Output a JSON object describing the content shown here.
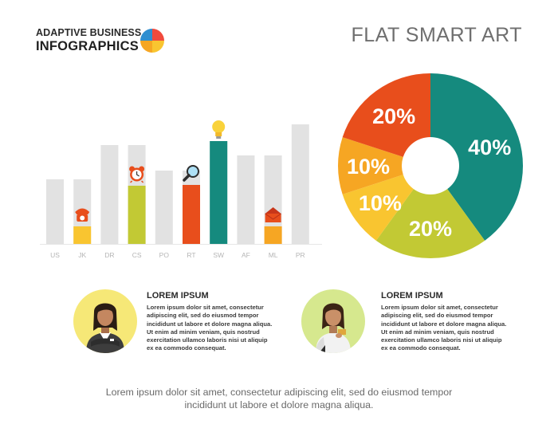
{
  "header": {
    "logo_line1": "ADAPTIVE BUSINESS",
    "logo_line2": "INFOGRAPHICS",
    "title": "FLAT SMART ART"
  },
  "colors": {
    "gray": "#e2e2e2",
    "yellow": "#f9c530",
    "orange": "#f6a623",
    "red_orange": "#e84e1c",
    "lime": "#c2c934",
    "teal": "#158a7e",
    "axis": "#e6e6e6",
    "tick_text": "#b5b5b5"
  },
  "chart_data": [
    {
      "type": "bar",
      "categories": [
        "US",
        "JK",
        "DR",
        "CS",
        "PO",
        "RT",
        "SW",
        "AF",
        "ML",
        "PR"
      ],
      "series": [
        {
          "values": [
            81,
            81,
            124,
            124,
            92,
            92,
            129,
            111,
            111,
            150
          ]
        },
        {
          "values": [
            0,
            22,
            0,
            73,
            0,
            74,
            129,
            0,
            22,
            0
          ]
        }
      ],
      "colored_bar_colors": [
        "",
        "yellow",
        "",
        "lime",
        "",
        "red_orange",
        "teal",
        "",
        "orange",
        ""
      ],
      "icons": [
        "",
        "telephone-icon",
        "",
        "alarm-clock-icon",
        "",
        "magnifier-icon",
        "lightbulb-icon",
        "",
        "envelope-icon",
        ""
      ],
      "ylim": [
        0,
        160
      ]
    },
    {
      "type": "pie",
      "labels": [
        "40%",
        "20%",
        "10%",
        "10%",
        "20%"
      ],
      "values": [
        40,
        20,
        10,
        10,
        20
      ],
      "colors": [
        "#158a7e",
        "#c2c934",
        "#f9c530",
        "#f6a623",
        "#e84e1c"
      ]
    }
  ],
  "people": [
    {
      "heading": "LOREM IPSUM",
      "body": "Lorem ipsum dolor sit amet, consectetur adipiscing elit, sed do eiusmod tempor incididunt ut labore et dolore magna aliqua. Ut enim ad minim veniam, quis nostrud exercitation ullamco laboris nisi ut aliquip ex ea commodo consequat."
    },
    {
      "heading": "LOREM IPSUM",
      "body": "Lorem ipsum dolor sit amet, consectetur adipiscing elit, sed do eiusmod tempor incididunt ut labore et dolore magna aliqua. Ut enim ad minim veniam, quis nostrud exercitation ullamco laboris nisi ut aliquip ex ea commodo consequat."
    }
  ],
  "footer": {
    "line1": "Lorem ipsum dolor sit amet, consectetur adipiscing elit, sed do eiusmod tempor",
    "line2": "incididunt ut labore et dolore magna aliqua."
  }
}
